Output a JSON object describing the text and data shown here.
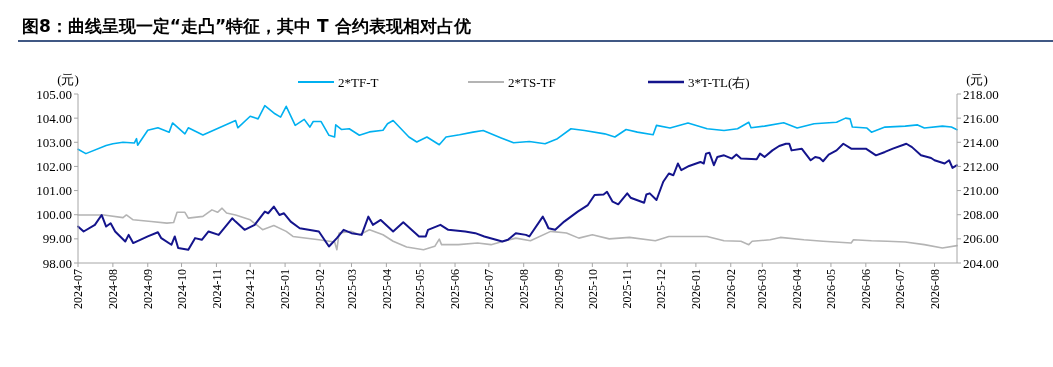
{
  "chart_data": {
    "type": "line",
    "title": "图8：曲线呈现一定“走凸”特征，其中 T 合约表现相对占优",
    "ylabel": "(元)",
    "y2label": "(元)",
    "xlim": [
      "2024-07-01",
      "2026-08-21"
    ],
    "xticks": [
      {
        "value": "2024-07-01",
        "label": "2024-07"
      },
      {
        "value": "2024-08-01",
        "label": "2024-08"
      },
      {
        "value": "2024-09-01",
        "label": "2024-09"
      },
      {
        "value": "2024-10-01",
        "label": "2024-10"
      },
      {
        "value": "2024-11-01",
        "label": "2024-11"
      },
      {
        "value": "2024-12-01",
        "label": "2024-12"
      },
      {
        "value": "2025-01-01",
        "label": "2025-01"
      },
      {
        "value": "2025-02-01",
        "label": "2025-02"
      },
      {
        "value": "2025-03-01",
        "label": "2025-03"
      },
      {
        "value": "2025-04-01",
        "label": "2025-04"
      },
      {
        "value": "2025-05-01",
        "label": "2025-05"
      },
      {
        "value": "2025-06-01",
        "label": "2025-06"
      },
      {
        "value": "2025-07-01",
        "label": "2025-07"
      },
      {
        "value": "2025-08-01",
        "label": "2025-08"
      },
      {
        "value": "2025-09-01",
        "label": "2025-09"
      },
      {
        "value": "2025-10-01",
        "label": "2025-10"
      },
      {
        "value": "2025-11-01",
        "label": "2025-11"
      },
      {
        "value": "2025-12-01",
        "label": "2025-12"
      },
      {
        "value": "2026-01-01",
        "label": "2026-01"
      },
      {
        "value": "2026-02-01",
        "label": "2026-02"
      },
      {
        "value": "2026-03-01",
        "label": "2026-03"
      },
      {
        "value": "2026-04-01",
        "label": "2026-04"
      },
      {
        "value": "2026-05-01",
        "label": "2026-05"
      },
      {
        "value": "2026-06-01",
        "label": "2026-06"
      },
      {
        "value": "2026-07-01",
        "label": "2026-07"
      },
      {
        "value": "2026-08-01",
        "label": "2026-08"
      }
    ],
    "ylim": [
      98,
      105
    ],
    "yticks": [
      {
        "value": 98,
        "label": "98.00"
      },
      {
        "value": 99,
        "label": "99.00"
      },
      {
        "value": 100,
        "label": "100.00"
      },
      {
        "value": 101,
        "label": "101.00"
      },
      {
        "value": 102,
        "label": "102.00"
      },
      {
        "value": 103,
        "label": "103.00"
      },
      {
        "value": 104,
        "label": "104.00"
      },
      {
        "value": 105,
        "label": "105.00"
      }
    ],
    "y2lim": [
      204,
      218
    ],
    "y2ticks": [
      {
        "value": 204,
        "label": "204.00"
      },
      {
        "value": 206,
        "label": "206.00"
      },
      {
        "value": 208,
        "label": "208.00"
      },
      {
        "value": 210,
        "label": "210.00"
      },
      {
        "value": 212,
        "label": "212.00"
      },
      {
        "value": 214,
        "label": "214.00"
      },
      {
        "value": 216,
        "label": "216.00"
      },
      {
        "value": 218,
        "label": "218.00"
      }
    ],
    "legend": "top",
    "grid": false,
    "series": [
      {
        "name": "2*TF-T",
        "color": "#00b0f0",
        "x": [
          "2024-07-01",
          "2024-07-08",
          "2024-07-26",
          "2024-08-01",
          "2024-08-10",
          "2024-08-20",
          "2024-08-22",
          "2024-08-23",
          "2024-09-01",
          "2024-09-10",
          "2024-09-20",
          "2024-09-23",
          "2024-10-04",
          "2024-10-07",
          "2024-10-20",
          "2024-11-01",
          "2024-11-18",
          "2024-11-20",
          "2024-12-01",
          "2024-12-08",
          "2024-12-14",
          "2024-12-23",
          "2024-12-28",
          "2025-01-02",
          "2025-01-10",
          "2025-01-18",
          "2025-01-23",
          "2025-01-26",
          "2025-02-02",
          "2025-02-09",
          "2025-02-14",
          "2025-02-15",
          "2025-02-20",
          "2025-02-27",
          "2025-03-08",
          "2025-03-17",
          "2025-03-29",
          "2025-04-02",
          "2025-04-07",
          "2025-04-21",
          "2025-04-28",
          "2025-05-07",
          "2025-05-18",
          "2025-05-24",
          "2025-06-05",
          "2025-06-17",
          "2025-06-26",
          "2025-07-12",
          "2025-07-23",
          "2025-08-06",
          "2025-08-20",
          "2025-08-31",
          "2025-09-12",
          "2025-09-24",
          "2025-10-12",
          "2025-10-21",
          "2025-10-31",
          "2025-11-10",
          "2025-11-24",
          "2025-11-27",
          "2025-12-09",
          "2025-12-25",
          "2026-01-11",
          "2026-01-26",
          "2026-02-07",
          "2026-02-17",
          "2026-02-19",
          "2026-03-03",
          "2026-03-20",
          "2026-04-01",
          "2026-04-16",
          "2026-05-06",
          "2026-05-14",
          "2026-05-18",
          "2026-05-20",
          "2026-06-02",
          "2026-06-06",
          "2026-06-18",
          "2026-07-06",
          "2026-07-17",
          "2026-07-23",
          "2026-08-08",
          "2026-08-16",
          "2026-08-21"
        ],
        "values": [
          102.71,
          102.53,
          102.87,
          102.94,
          103.0,
          102.97,
          103.15,
          102.88,
          103.5,
          103.6,
          103.42,
          103.8,
          103.35,
          103.6,
          103.3,
          103.55,
          103.9,
          103.6,
          104.08,
          103.97,
          104.52,
          104.18,
          104.04,
          104.49,
          103.7,
          103.95,
          103.63,
          103.86,
          103.86,
          103.29,
          103.22,
          103.72,
          103.53,
          103.56,
          103.29,
          103.43,
          103.5,
          103.77,
          103.9,
          103.22,
          103.01,
          103.22,
          102.9,
          103.22,
          103.31,
          103.42,
          103.49,
          103.18,
          102.98,
          103.03,
          102.94,
          103.15,
          103.56,
          103.49,
          103.35,
          103.22,
          103.53,
          103.42,
          103.31,
          103.7,
          103.59,
          103.8,
          103.56,
          103.49,
          103.56,
          103.83,
          103.6,
          103.67,
          103.81,
          103.59,
          103.77,
          103.83,
          104.0,
          103.97,
          103.63,
          103.59,
          103.42,
          103.63,
          103.67,
          103.72,
          103.59,
          103.67,
          103.63,
          103.52
        ]
      },
      {
        "name": "2*TS-TF",
        "color": "#b4b4b4",
        "x": [
          "2024-07-01",
          "2024-07-24",
          "2024-08-10",
          "2024-08-13",
          "2024-08-19",
          "2024-09-04",
          "2024-09-18",
          "2024-09-24",
          "2024-09-27",
          "2024-10-04",
          "2024-10-07",
          "2024-10-20",
          "2024-10-28",
          "2024-11-02",
          "2024-11-06",
          "2024-11-10",
          "2024-11-18",
          "2024-12-01",
          "2024-12-12",
          "2024-12-22",
          "2025-01-02",
          "2025-01-08",
          "2025-01-31",
          "2025-02-14",
          "2025-02-16",
          "2025-02-18",
          "2025-03-01",
          "2025-03-08",
          "2025-03-17",
          "2025-03-29",
          "2025-04-07",
          "2025-04-19",
          "2025-05-04",
          "2025-05-14",
          "2025-05-18",
          "2025-05-20",
          "2025-06-04",
          "2025-06-21",
          "2025-07-03",
          "2025-07-14",
          "2025-07-25",
          "2025-08-07",
          "2025-08-25",
          "2025-09-08",
          "2025-09-19",
          "2025-10-01",
          "2025-10-16",
          "2025-11-03",
          "2025-11-26",
          "2025-12-08",
          "2025-12-25",
          "2026-01-11",
          "2026-01-26",
          "2026-02-10",
          "2026-02-17",
          "2026-02-20",
          "2026-03-08",
          "2026-03-17",
          "2026-04-07",
          "2026-04-24",
          "2026-05-19",
          "2026-05-21",
          "2026-06-06",
          "2026-06-20",
          "2026-07-06",
          "2026-07-23",
          "2026-08-08",
          "2026-08-21"
        ],
        "values": [
          99.99,
          99.99,
          99.88,
          99.99,
          99.79,
          99.72,
          99.65,
          99.68,
          100.1,
          100.1,
          99.86,
          99.93,
          100.2,
          100.1,
          100.27,
          100.07,
          99.99,
          99.79,
          99.38,
          99.55,
          99.31,
          99.1,
          98.96,
          98.87,
          98.55,
          99.24,
          99.31,
          99.17,
          99.38,
          99.17,
          98.9,
          98.66,
          98.55,
          98.69,
          98.99,
          98.76,
          98.76,
          98.83,
          98.76,
          98.9,
          99.03,
          98.92,
          99.31,
          99.24,
          99.03,
          99.17,
          99.0,
          99.06,
          98.92,
          99.1,
          99.1,
          99.1,
          98.92,
          98.9,
          98.76,
          98.9,
          98.96,
          99.06,
          98.96,
          98.9,
          98.83,
          98.96,
          98.92,
          98.9,
          98.87,
          98.76,
          98.62,
          98.72
        ]
      },
      {
        "name": "3*T-TL(右)",
        "color": "#14148c",
        "axis": "y2",
        "x": [
          "2024-07-01",
          "2024-07-06",
          "2024-07-16",
          "2024-07-22",
          "2024-07-26",
          "2024-07-30",
          "2024-08-03",
          "2024-08-12",
          "2024-08-15",
          "2024-08-19",
          "2024-09-01",
          "2024-09-10",
          "2024-09-13",
          "2024-09-22",
          "2024-09-25",
          "2024-09-28",
          "2024-10-07",
          "2024-10-13",
          "2024-10-19",
          "2024-10-25",
          "2024-11-03",
          "2024-11-15",
          "2024-11-18",
          "2024-11-26",
          "2024-12-05",
          "2024-12-14",
          "2024-12-17",
          "2024-12-22",
          "2024-12-27",
          "2024-12-31",
          "2025-01-06",
          "2025-01-14",
          "2025-01-31",
          "2025-02-09",
          "2025-02-16",
          "2025-02-22",
          "2025-03-01",
          "2025-03-10",
          "2025-03-16",
          "2025-03-20",
          "2025-03-27",
          "2025-04-07",
          "2025-04-16",
          "2025-04-30",
          "2025-05-06",
          "2025-05-08",
          "2025-05-19",
          "2025-05-26",
          "2025-06-10",
          "2025-06-19",
          "2025-06-27",
          "2025-07-13",
          "2025-07-18",
          "2025-07-25",
          "2025-08-03",
          "2025-08-06",
          "2025-08-18",
          "2025-08-21",
          "2025-08-23",
          "2025-08-29",
          "2025-09-06",
          "2025-09-18",
          "2025-09-27",
          "2025-10-03",
          "2025-10-11",
          "2025-10-14",
          "2025-10-19",
          "2025-10-24",
          "2025-11-01",
          "2025-11-04",
          "2025-11-16",
          "2025-11-18",
          "2025-11-21",
          "2025-11-27",
          "2025-12-03",
          "2025-12-08",
          "2025-12-12",
          "2025-12-16",
          "2025-12-19",
          "2025-12-26",
          "2026-01-05",
          "2026-01-08",
          "2026-01-10",
          "2026-01-13",
          "2026-01-17",
          "2026-01-20",
          "2026-01-26",
          "2026-02-02",
          "2026-02-06",
          "2026-02-10",
          "2026-02-24",
          "2026-02-27",
          "2026-03-03",
          "2026-03-10",
          "2026-03-16",
          "2026-03-22",
          "2026-03-25",
          "2026-03-27",
          "2026-04-05",
          "2026-04-13",
          "2026-04-17",
          "2026-04-21",
          "2026-04-24",
          "2026-04-29",
          "2026-05-06",
          "2026-05-12",
          "2026-05-19",
          "2026-06-01",
          "2026-06-10",
          "2026-06-18",
          "2026-06-25",
          "2026-07-07",
          "2026-07-12",
          "2026-07-20",
          "2026-07-29",
          "2026-08-01",
          "2026-08-10",
          "2026-08-14",
          "2026-08-17",
          "2026-08-21"
        ],
        "values": [
          207.02,
          206.61,
          207.16,
          207.98,
          207.02,
          207.29,
          206.61,
          205.78,
          206.33,
          205.65,
          206.2,
          206.55,
          206.06,
          205.51,
          206.2,
          205.24,
          205.1,
          206.06,
          205.92,
          206.61,
          206.33,
          207.7,
          207.43,
          206.75,
          207.16,
          208.26,
          208.12,
          208.67,
          207.98,
          208.12,
          207.43,
          206.88,
          206.61,
          205.37,
          206.06,
          206.75,
          206.47,
          206.33,
          207.84,
          207.16,
          207.57,
          206.61,
          207.38,
          206.2,
          206.2,
          206.75,
          207.16,
          206.75,
          206.61,
          206.47,
          206.2,
          205.78,
          205.92,
          206.47,
          206.33,
          206.2,
          207.84,
          207.29,
          206.88,
          206.75,
          207.43,
          208.26,
          208.8,
          209.63,
          209.68,
          209.9,
          209.08,
          208.86,
          209.77,
          209.41,
          208.99,
          209.68,
          209.77,
          209.22,
          210.73,
          211.41,
          211.27,
          212.24,
          211.69,
          212.04,
          212.37,
          212.24,
          213.06,
          213.14,
          212.1,
          212.78,
          212.92,
          212.65,
          212.98,
          212.65,
          212.59,
          213.06,
          212.78,
          213.33,
          213.69,
          213.88,
          213.88,
          213.33,
          213.47,
          212.51,
          212.78,
          212.7,
          212.43,
          212.98,
          213.33,
          213.88,
          213.47,
          213.47,
          212.92,
          213.2,
          213.47,
          213.88,
          213.6,
          212.92,
          212.7,
          212.51,
          212.24,
          212.51,
          211.88,
          212.1
        ]
      }
    ]
  }
}
